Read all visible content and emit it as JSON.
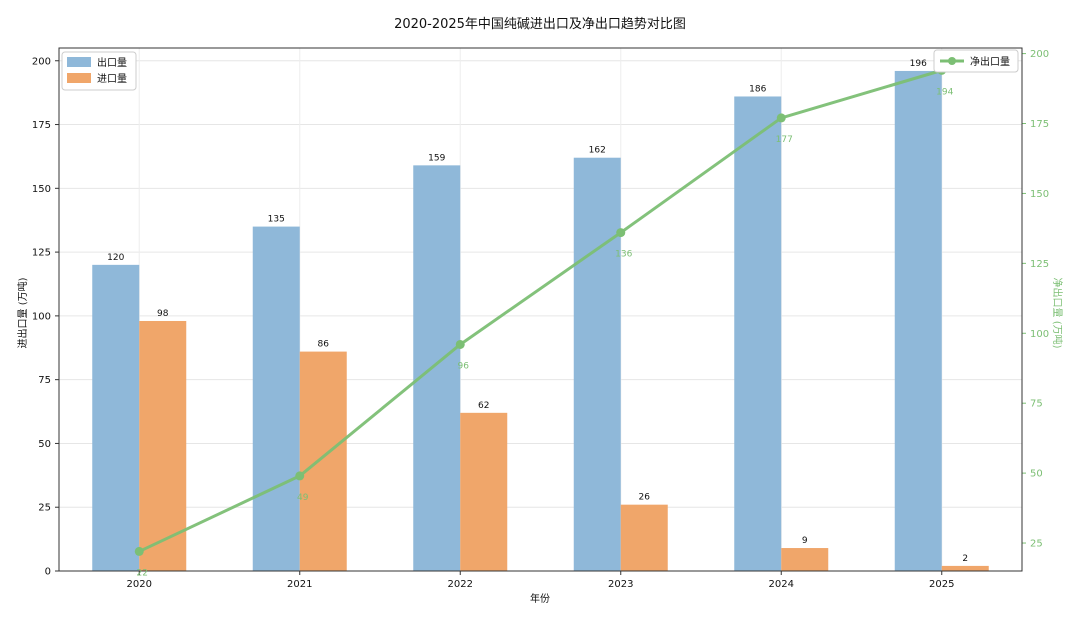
{
  "chart_data": {
    "type": "bar",
    "title": "2020-2025年中国纯碱进出口及净出口趋势对比图",
    "xlabel": "年份",
    "ylabel": "进出口量 (万吨)",
    "y2label": "净出口量 (万吨)",
    "categories": [
      "2020",
      "2021",
      "2022",
      "2023",
      "2024",
      "2025"
    ],
    "ylim": [
      0,
      205
    ],
    "y2lim": [
      15,
      202
    ],
    "yticks": [
      0,
      25,
      50,
      75,
      100,
      125,
      150,
      175,
      200
    ],
    "y2ticks": [
      25,
      50,
      75,
      100,
      125,
      150,
      175,
      200
    ],
    "grid": true,
    "series": [
      {
        "name": "出口量",
        "type": "bar",
        "axis": "left",
        "color": "#8fb8d9",
        "values": [
          120,
          135,
          159,
          162,
          186,
          196
        ]
      },
      {
        "name": "进口量",
        "type": "bar",
        "axis": "left",
        "color": "#f0a66a",
        "values": [
          98,
          86,
          62,
          26,
          9,
          2
        ]
      },
      {
        "name": "净出口量",
        "type": "line",
        "axis": "right",
        "color": "#7cbf74",
        "values": [
          22,
          49,
          96,
          136,
          177,
          194
        ]
      }
    ],
    "legend_left": "top-left",
    "legend_right": "top-right"
  }
}
